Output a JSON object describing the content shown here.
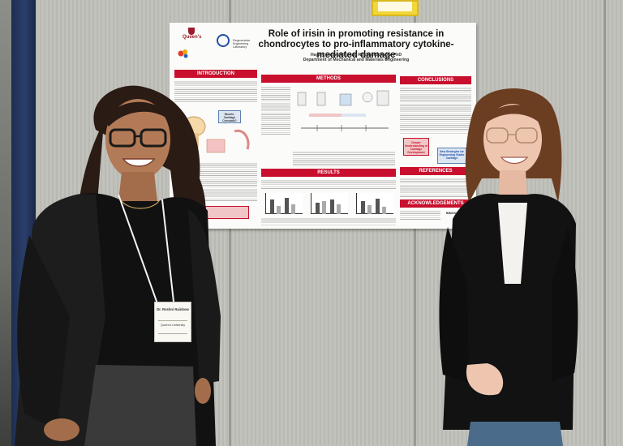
{
  "poster": {
    "title": "Role of irisin in promoting resistance in chondrocytes to pro-inflammatory cytokine-mediated damage",
    "authors": "Hayley Galsworthy and Roshni Rainbow, PhD",
    "department": "Department of Mechanical and Materials Engineering",
    "university_logo": "Queen's",
    "lab_logo": "Regenerative Engineering Laboratory",
    "sections": {
      "introduction": "INTRODUCTION",
      "methods": "METHODS",
      "conclusions": "CONCLUSIONS",
      "results": "RESULTS",
      "references": "REFERENCES",
      "acknowledgements": "ACKNOWLEDGEMENTS"
    },
    "diagram_label": "Muscle-Cartilage Crosstalk?",
    "conclusion_boxes": [
      "Deeper Understanding of Cartilage Development",
      "New Strategies for Engineering Stable Cartilage"
    ],
    "sponsor_logo": "INNOVATION"
  },
  "badge": {
    "name": "Dr. Roshni Rainbow",
    "subtitle": "Queen's University"
  },
  "colors": {
    "poster_header_red": "#c8102e",
    "wall_gray": "#b9b9b3",
    "pillar_blue": "#2b3f6b",
    "sticky_yellow": "#f2d63a"
  }
}
